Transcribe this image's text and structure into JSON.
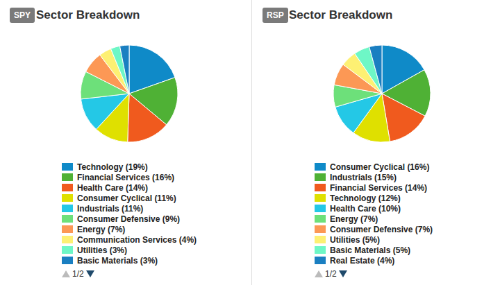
{
  "chart_data": [
    {
      "type": "pie",
      "badge": "SPY",
      "title": "Sector Breakdown",
      "categories": [
        "Technology (19%)",
        "Financial Services (16%)",
        "Health Care (14%)",
        "Consumer Cyclical (11%)",
        "Industrials (11%)",
        "Consumer Defensive (9%)",
        "Energy (7%)",
        "Communication Services (4%)",
        "Utilities (3%)",
        "Basic Materials (3%)"
      ],
      "values": [
        19,
        16,
        14,
        11,
        11,
        9,
        7,
        4,
        3,
        3
      ],
      "colors": [
        "#0f8ac8",
        "#4fb135",
        "#f05a1e",
        "#dfe000",
        "#24c8e6",
        "#6de07a",
        "#fc9855",
        "#fdf073",
        "#6ef7c6",
        "#1a7fc1"
      ],
      "page": "1/2"
    },
    {
      "type": "pie",
      "badge": "RSP",
      "title": "Sector Breakdown",
      "categories": [
        "Consumer Cyclical (16%)",
        "Industrials (15%)",
        "Financial Services (14%)",
        "Technology (12%)",
        "Health Care (10%)",
        "Energy (7%)",
        "Consumer Defensive (7%)",
        "Utilities (5%)",
        "Basic Materials (5%)",
        "Real Estate (4%)"
      ],
      "values": [
        16,
        15,
        14,
        12,
        10,
        7,
        7,
        5,
        5,
        4
      ],
      "colors": [
        "#0f8ac8",
        "#4fb135",
        "#f05a1e",
        "#dfe000",
        "#24c8e6",
        "#6de07a",
        "#fc9855",
        "#fdf073",
        "#6ef7c6",
        "#1a7fc1"
      ],
      "page": "1/2"
    }
  ]
}
